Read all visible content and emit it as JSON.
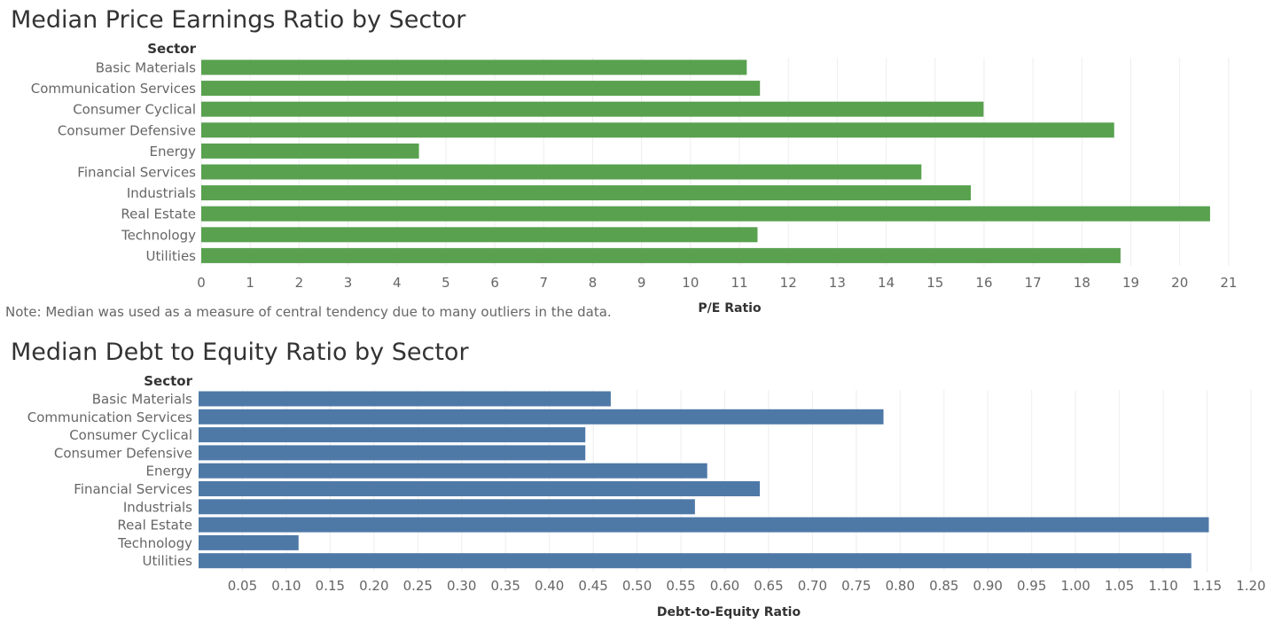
{
  "note": "Note: Median was used as a measure of central tendency due to many outliers in the data.",
  "chart_data": [
    {
      "type": "bar",
      "orientation": "horizontal",
      "title": "Median Price Earnings Ratio by Sector",
      "category_header": "Sector",
      "xlabel": "P/E Ratio",
      "categories": [
        "Basic Materials",
        "Communication Services",
        "Consumer Cyclical",
        "Consumer Defensive",
        "Energy",
        "Financial Services",
        "Industrials",
        "Real Estate",
        "Technology",
        "Utilities"
      ],
      "values": [
        11.15,
        11.42,
        15.99,
        18.66,
        4.45,
        14.72,
        15.73,
        20.62,
        11.37,
        18.79
      ],
      "xlim": [
        0,
        21.6
      ],
      "ticks": [
        "0",
        "1",
        "2",
        "3",
        "4",
        "5",
        "6",
        "7",
        "8",
        "9",
        "10",
        "11",
        "12",
        "13",
        "14",
        "15",
        "16",
        "17",
        "18",
        "19",
        "20",
        "21"
      ],
      "color": "#59a14f",
      "grid": true
    },
    {
      "type": "bar",
      "orientation": "horizontal",
      "title": "Median Debt to Equity Ratio by Sector",
      "category_header": "Sector",
      "xlabel": "Debt-to-Equity Ratio",
      "categories": [
        "Basic Materials",
        "Communication Services",
        "Consumer Cyclical",
        "Consumer Defensive",
        "Energy",
        "Financial Services",
        "Industrials",
        "Real Estate",
        "Technology",
        "Utilities"
      ],
      "values": [
        0.47,
        0.781,
        0.441,
        0.441,
        0.58,
        0.64,
        0.566,
        1.152,
        0.114,
        1.132
      ],
      "xlim": [
        0,
        1.2
      ],
      "ticks": [
        "0.05",
        "0.10",
        "0.15",
        "0.20",
        "0.25",
        "0.30",
        "0.35",
        "0.40",
        "0.45",
        "0.50",
        "0.55",
        "0.60",
        "0.65",
        "0.70",
        "0.75",
        "0.80",
        "0.85",
        "0.90",
        "0.95",
        "1.00",
        "1.05",
        "1.10",
        "1.15",
        "1.20"
      ],
      "color": "#4e79a7",
      "grid": true
    }
  ]
}
